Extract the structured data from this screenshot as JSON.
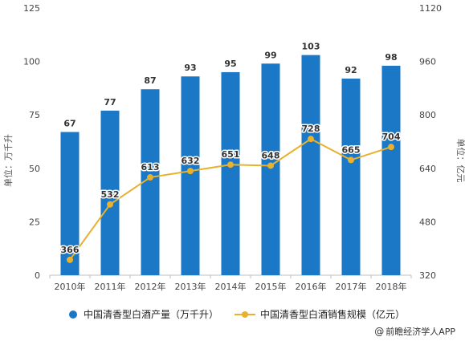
{
  "chart_data": {
    "type": "bar+line",
    "categories": [
      "2010年",
      "2011年",
      "2012年",
      "2013年",
      "2014年",
      "2015年",
      "2016年",
      "2017年",
      "2018年"
    ],
    "series": [
      {
        "name": "中国清香型白酒产量（万千升）",
        "type": "bar",
        "axis": "left",
        "color": "#1b78c6",
        "values": [
          67,
          77,
          87,
          93,
          95,
          99,
          103,
          92,
          98
        ]
      },
      {
        "name": "中国清香型白酒销售规模（亿元）",
        "type": "line",
        "axis": "right",
        "color": "#e8b12e",
        "values": [
          366,
          532,
          613,
          632,
          651,
          648,
          728,
          665,
          704
        ]
      }
    ],
    "ylabel_left": "单位：万千升",
    "ylabel_right": "单位：亿元",
    "ylim_left": [
      0,
      125
    ],
    "yticks_left": [
      "0",
      "25",
      "50",
      "75",
      "100",
      "125"
    ],
    "ylim_right": [
      320,
      1120
    ],
    "yticks_right": [
      "320",
      "480",
      "640",
      "800",
      "960",
      "1120"
    ],
    "grid": false,
    "legend_position": "bottom"
  },
  "source": {
    "label": "前瞻经济学人APP",
    "icon": "copyright-icon",
    "icon_glyph": "@"
  }
}
